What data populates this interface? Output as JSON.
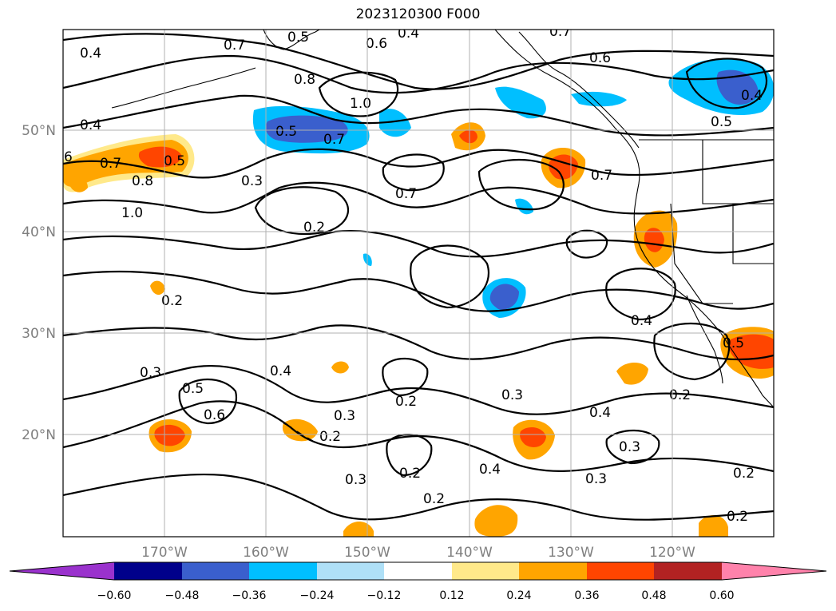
{
  "title": "2023120300 F000",
  "map": {
    "lon_range": [
      -180,
      -110
    ],
    "lat_range": [
      10,
      60
    ],
    "x_ticks": [
      "170°W",
      "160°W",
      "150°W",
      "140°W",
      "130°W",
      "120°W"
    ],
    "y_ticks": [
      "20°N",
      "30°N",
      "40°N",
      "50°N"
    ],
    "grid": true
  },
  "colorbar": {
    "ticks": [
      "−0.60",
      "−0.48",
      "−0.36",
      "−0.24",
      "−0.12",
      "0.12",
      "0.24",
      "0.36",
      "0.48",
      "0.60"
    ],
    "colors": [
      "#9a32cd",
      "#00008b",
      "#3a5fcd",
      "#00bfff",
      "#afe0f7",
      "#ffffff",
      "#ffe98a",
      "#ffa500",
      "#ff4500",
      "#b22222",
      "#ff82ab"
    ],
    "extend": "both"
  },
  "contour_labels": [
    {
      "text": "0.4"
    },
    {
      "text": "0.7"
    },
    {
      "text": "0.5"
    },
    {
      "text": "0.4"
    },
    {
      "text": "0.6"
    },
    {
      "text": "0.7"
    },
    {
      "text": "0.6"
    },
    {
      "text": "0.8"
    },
    {
      "text": "1.0"
    },
    {
      "text": "0.4"
    },
    {
      "text": "0.4"
    },
    {
      "text": "0.5"
    },
    {
      "text": "6"
    },
    {
      "text": "0.7"
    },
    {
      "text": "0.5"
    },
    {
      "text": "0.8"
    },
    {
      "text": "0.5"
    },
    {
      "text": "0.7"
    },
    {
      "text": "0.5"
    },
    {
      "text": "1.0"
    },
    {
      "text": "0.3"
    },
    {
      "text": "0.2"
    },
    {
      "text": "0.7"
    },
    {
      "text": "0.7"
    },
    {
      "text": "0.2"
    },
    {
      "text": "0.4"
    },
    {
      "text": "0.3"
    },
    {
      "text": "0.4"
    },
    {
      "text": "0.5"
    },
    {
      "text": "0.6"
    },
    {
      "text": "0.2"
    },
    {
      "text": "0.3"
    },
    {
      "text": "0.2"
    },
    {
      "text": "0.3"
    },
    {
      "text": "0.4"
    },
    {
      "text": "0.3"
    },
    {
      "text": "0.2"
    },
    {
      "text": "0.2"
    },
    {
      "text": "0.3"
    },
    {
      "text": "0.3"
    },
    {
      "text": "0.4"
    },
    {
      "text": "0.2"
    },
    {
      "text": "0.2"
    },
    {
      "text": "0.2"
    }
  ]
}
